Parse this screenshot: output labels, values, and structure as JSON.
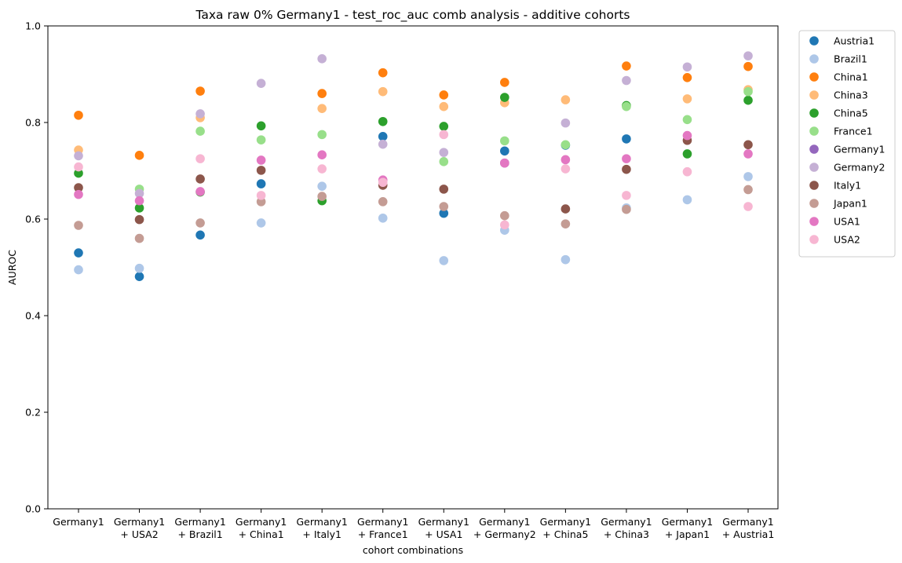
{
  "chart_data": {
    "type": "scatter",
    "title": "Taxa raw 0% Germany1 - test_roc_auc comb analysis - additive cohorts",
    "xlabel": "cohort combinations",
    "ylabel": "AUROC",
    "ylim": [
      0,
      1.0
    ],
    "yticks": [
      "0.0",
      "0.2",
      "0.4",
      "0.6",
      "0.8",
      "1.0"
    ],
    "grid": false,
    "legend_position": "outside-top-right",
    "categories": [
      [
        "Germany1"
      ],
      [
        "Germany1",
        "+ USA2"
      ],
      [
        "Germany1",
        "+ Brazil1"
      ],
      [
        "Germany1",
        "+ China1"
      ],
      [
        "Germany1",
        "+ Italy1"
      ],
      [
        "Germany1",
        "+ France1"
      ],
      [
        "Germany1",
        "+ USA1"
      ],
      [
        "Germany1",
        "+ Germany2"
      ],
      [
        "Germany1",
        "+ China5"
      ],
      [
        "Germany1",
        "+ China3"
      ],
      [
        "Germany1",
        "+ Japan1"
      ],
      [
        "Germany1",
        "+ Austria1"
      ]
    ],
    "series": [
      {
        "name": "Austria1",
        "color": "#1f77b4",
        "values": [
          0.53,
          0.481,
          0.567,
          0.673,
          null,
          0.771,
          0.612,
          0.741,
          0.753,
          0.766,
          null,
          null
        ]
      },
      {
        "name": "Brazil1",
        "color": "#aec7e8",
        "values": [
          0.495,
          0.498,
          null,
          0.592,
          0.668,
          0.602,
          0.514,
          0.577,
          0.516,
          0.623,
          0.64,
          0.688
        ]
      },
      {
        "name": "China1",
        "color": "#ff7f0e",
        "values": [
          0.815,
          0.732,
          0.865,
          null,
          0.86,
          0.903,
          0.857,
          0.883,
          null,
          0.917,
          0.893,
          0.916
        ]
      },
      {
        "name": "China3",
        "color": "#ffbb78",
        "values": [
          0.743,
          null,
          0.81,
          null,
          0.829,
          0.864,
          0.833,
          0.841,
          0.847,
          null,
          0.849,
          0.868
        ]
      },
      {
        "name": "China5",
        "color": "#2ca02c",
        "values": [
          0.695,
          0.623,
          0.656,
          0.793,
          0.638,
          0.802,
          0.792,
          0.852,
          null,
          0.835,
          0.735,
          0.846
        ]
      },
      {
        "name": "France1",
        "color": "#98df8a",
        "values": [
          null,
          0.662,
          0.782,
          0.764,
          0.775,
          null,
          0.719,
          0.762,
          0.754,
          0.833,
          0.806,
          0.864
        ]
      },
      {
        "name": "Germany1",
        "color": "#9467bd",
        "values": [
          null,
          null,
          null,
          null,
          null,
          null,
          null,
          0.716,
          null,
          null,
          null,
          null
        ]
      },
      {
        "name": "Germany2",
        "color": "#c5b0d5",
        "values": [
          0.731,
          0.653,
          0.818,
          0.881,
          0.932,
          0.755,
          0.738,
          null,
          0.799,
          0.887,
          0.915,
          0.938
        ]
      },
      {
        "name": "Italy1",
        "color": "#8c564b",
        "values": [
          0.665,
          0.599,
          0.683,
          0.701,
          null,
          0.67,
          0.662,
          null,
          0.621,
          0.703,
          0.763,
          0.754
        ]
      },
      {
        "name": "Japan1",
        "color": "#c49c94",
        "values": [
          0.587,
          0.56,
          0.592,
          0.636,
          0.647,
          0.636,
          0.626,
          0.607,
          0.59,
          0.62,
          null,
          0.661
        ]
      },
      {
        "name": "USA1",
        "color": "#e377c2",
        "values": [
          0.651,
          0.638,
          0.657,
          0.722,
          0.733,
          0.681,
          null,
          0.716,
          0.723,
          0.725,
          0.773,
          0.735
        ]
      },
      {
        "name": "USA2",
        "color": "#f7b6d2",
        "values": [
          0.708,
          null,
          0.725,
          0.649,
          0.704,
          0.676,
          0.775,
          0.588,
          0.704,
          0.649,
          0.698,
          0.626
        ]
      }
    ]
  }
}
